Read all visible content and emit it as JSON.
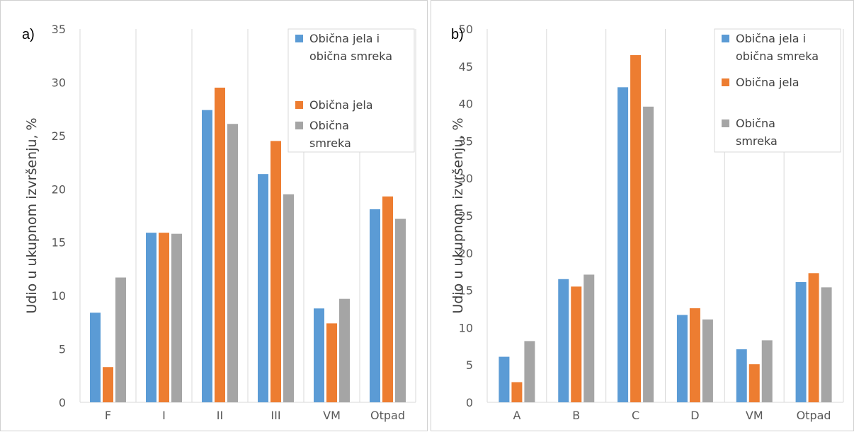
{
  "chart_data": [
    {
      "type": "bar",
      "panel_label": "a)",
      "ylabel": "Udio u ukupnom izvršenju, %",
      "xlabel": "",
      "ylim": [
        0,
        35
      ],
      "yticks": [
        "0",
        "5",
        "10",
        "15",
        "20",
        "25",
        "30",
        "35"
      ],
      "grid": "vertical",
      "legend_position": "top-right",
      "categories": [
        "F",
        "I",
        "II",
        "III",
        "VM",
        "Otpad"
      ],
      "series": [
        {
          "name": "Obična jela i obična smreka",
          "legend_lines": [
            "Obična jela i",
            "obična smreka"
          ],
          "color": "#5b9bd5",
          "values": [
            8.4,
            15.9,
            27.4,
            21.4,
            8.8,
            18.1
          ]
        },
        {
          "name": "Obična jela",
          "legend_lines": [
            "Obična jela"
          ],
          "color": "#ed7d31",
          "values": [
            3.3,
            15.9,
            29.5,
            24.5,
            7.4,
            19.3
          ]
        },
        {
          "name": "Obična smreka",
          "legend_lines": [
            "Obična",
            "smreka"
          ],
          "color": "#a5a5a5",
          "values": [
            11.7,
            15.8,
            26.1,
            19.5,
            9.7,
            17.2
          ]
        }
      ]
    },
    {
      "type": "bar",
      "panel_label": "b)",
      "ylabel": "Udio u ukupnom izvršenju, %",
      "xlabel": "",
      "ylim": [
        0,
        50
      ],
      "yticks": [
        "0",
        "5",
        "10",
        "15",
        "20",
        "25",
        "30",
        "35",
        "40",
        "45",
        "50"
      ],
      "grid": "vertical",
      "legend_position": "top-right",
      "categories": [
        "A",
        "B",
        "C",
        "D",
        "VM",
        "Otpad"
      ],
      "series": [
        {
          "name": "Obična jela i obična smreka",
          "legend_lines": [
            "Obična jela i",
            "obična smreka"
          ],
          "color": "#5b9bd5",
          "values": [
            6.1,
            16.5,
            42.2,
            11.7,
            7.1,
            16.1
          ]
        },
        {
          "name": "Obična jela",
          "legend_lines": [
            "Obična jela"
          ],
          "color": "#ed7d31",
          "values": [
            2.7,
            15.5,
            46.5,
            12.6,
            5.1,
            17.3
          ]
        },
        {
          "name": "Obična smreka",
          "legend_lines": [
            "Obična",
            "smreka"
          ],
          "color": "#a5a5a5",
          "values": [
            8.2,
            17.1,
            39.6,
            11.1,
            8.3,
            15.4
          ]
        }
      ]
    }
  ]
}
